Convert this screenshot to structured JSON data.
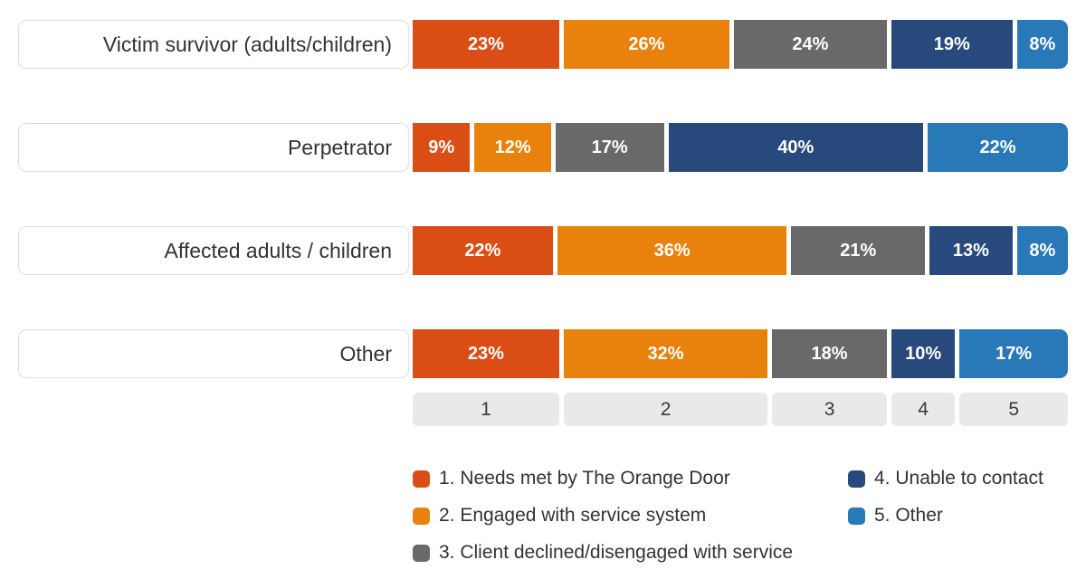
{
  "chart_data": {
    "type": "bar",
    "stacked": true,
    "orientation": "horizontal",
    "value_unit": "percent",
    "grid": false,
    "categories": [
      "Victim survivor (adults/children)",
      "Perpetrator",
      "Affected adults / children",
      "Other"
    ],
    "series": [
      {
        "name": "1. Needs met by The Orange Door",
        "color": "#da4e16",
        "values": [
          23,
          9,
          22,
          23
        ]
      },
      {
        "name": "2. Engaged with service system",
        "color": "#e8820c",
        "values": [
          26,
          12,
          36,
          32
        ]
      },
      {
        "name": "3. Client declined/disengaged with service",
        "color": "#696969",
        "values": [
          24,
          17,
          21,
          18
        ]
      },
      {
        "name": "4. Unable to contact",
        "color": "#28497c",
        "values": [
          19,
          40,
          13,
          10
        ]
      },
      {
        "name": "5. Other",
        "color": "#2979b9",
        "values": [
          8,
          22,
          8,
          17
        ]
      }
    ],
    "axis_boxes": [
      {
        "label": "1",
        "width": 23
      },
      {
        "label": "2",
        "width": 32
      },
      {
        "label": "3",
        "width": 18
      },
      {
        "label": "4",
        "width": 10
      },
      {
        "label": "5",
        "width": 17
      }
    ],
    "legend": {
      "position": "bottom",
      "columns": 2,
      "items": [
        {
          "label": "1. Needs met by The Orange Door",
          "color": "#da4e16"
        },
        {
          "label": "2. Engaged with service system",
          "color": "#e8820c"
        },
        {
          "label": "3. Client declined/disengaged with service",
          "color": "#696969"
        },
        {
          "label": "4. Unable to contact",
          "color": "#28497c"
        },
        {
          "label": "5. Other",
          "color": "#2979b9"
        }
      ]
    }
  },
  "colors": {
    "label_box_border": "#dedede",
    "axis_box_background": "#e9e9e9",
    "text": "#333333",
    "segment_text": "#ffffff",
    "background": "#ffffff"
  }
}
